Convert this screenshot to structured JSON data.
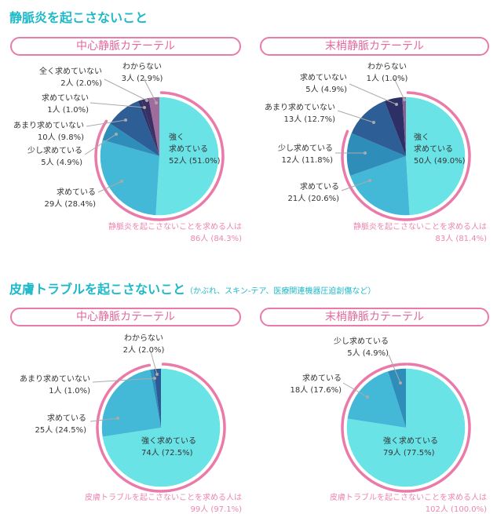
{
  "sections": [
    {
      "title": "静脈炎を起こさないこと",
      "subtitle": ""
    },
    {
      "title": "皮膚トラブルを起こさないこと",
      "subtitle": "（かぶれ、スキン-テア、医療関連機器圧迫創傷など）"
    }
  ],
  "colors": {
    "accent_title": "#1db9c9",
    "accent_pink": "#e97aa9"
  },
  "chart_data": [
    {
      "type": "pie",
      "title": "中心静脈カテーテル",
      "unit": "人",
      "slices": [
        {
          "label": "強く求めている",
          "count": 52,
          "percent": 51.0,
          "text": "52人 (51.0%)",
          "color": "#6ae3e7"
        },
        {
          "label": "求めている",
          "count": 29,
          "percent": 28.4,
          "text": "29人 (28.4%)",
          "color": "#43b8d7"
        },
        {
          "label": "少し求めている",
          "count": 5,
          "percent": 4.9,
          "text": "5人 (4.9%)",
          "color": "#2f8db9"
        },
        {
          "label": "あまり求めていない",
          "count": 10,
          "percent": 9.8,
          "text": "10人 (9.8%)",
          "color": "#2e5e96"
        },
        {
          "label": "求めていない",
          "count": 1,
          "percent": 1.0,
          "text": "1人 (1.0%)",
          "color": "#2b3467"
        },
        {
          "label": "全く求めていない",
          "count": 2,
          "percent": 2.0,
          "text": "2人 (2.0%)",
          "color": "#3b2f66"
        },
        {
          "label": "わからない",
          "count": 3,
          "percent": 2.9,
          "text": "3人 (2.9%)",
          "color": "#a06c9c"
        }
      ],
      "strong_label_lines": [
        "強く",
        "求めている"
      ],
      "highlight_percent": 84.3,
      "footnote": [
        "静脈炎を起こさないことを求める人は",
        "86人 (84.3%)"
      ]
    },
    {
      "type": "pie",
      "title": "末梢静脈カテーテル",
      "unit": "人",
      "slices": [
        {
          "label": "強く求めている",
          "count": 50,
          "percent": 49.0,
          "text": "50人 (49.0%)",
          "color": "#6ae3e7"
        },
        {
          "label": "求めている",
          "count": 21,
          "percent": 20.6,
          "text": "21人 (20.6%)",
          "color": "#43b8d7"
        },
        {
          "label": "少し求めている",
          "count": 12,
          "percent": 11.8,
          "text": "12人 (11.8%)",
          "color": "#2f8db9"
        },
        {
          "label": "あまり求めていない",
          "count": 13,
          "percent": 12.7,
          "text": "13人 (12.7%)",
          "color": "#2e5e96"
        },
        {
          "label": "求めていない",
          "count": 5,
          "percent": 4.9,
          "text": "5人 (4.9%)",
          "color": "#2c3066"
        },
        {
          "label": "わからない",
          "count": 1,
          "percent": 1.0,
          "text": "1人 (1.0%)",
          "color": "#8e5d94"
        }
      ],
      "strong_label_lines": [
        "強く",
        "求めている"
      ],
      "highlight_percent": 81.4,
      "footnote": [
        "静脈炎を起こさないことを求める人は",
        "83人 (81.4%)"
      ]
    },
    {
      "type": "pie",
      "title": "中心静脈カテーテル",
      "unit": "人",
      "slices": [
        {
          "label": "強く求めている",
          "count": 74,
          "percent": 72.5,
          "text": "74人 (72.5%)",
          "color": "#6ae3e7"
        },
        {
          "label": "求めている",
          "count": 25,
          "percent": 24.5,
          "text": "25人 (24.5%)",
          "color": "#43b8d7"
        },
        {
          "label": "あまり求めていない",
          "count": 1,
          "percent": 1.0,
          "text": "1人 (1.0%)",
          "color": "#2f8db9"
        },
        {
          "label": "わからない",
          "count": 2,
          "percent": 2.0,
          "text": "2人 (2.0%)",
          "color": "#2d5a96"
        }
      ],
      "highlight_percent": 97.1,
      "footnote": [
        "皮膚トラブルを起こさないことを求める人は",
        "99人 (97.1%)"
      ]
    },
    {
      "type": "pie",
      "title": "末梢静脈カテーテル",
      "unit": "人",
      "slices": [
        {
          "label": "強く求めている",
          "count": 79,
          "percent": 77.5,
          "text": "79人 (77.5%)",
          "color": "#6ae3e7"
        },
        {
          "label": "求めている",
          "count": 18,
          "percent": 17.6,
          "text": "18人 (17.6%)",
          "color": "#43b8d7"
        },
        {
          "label": "少し求めている",
          "count": 5,
          "percent": 4.9,
          "text": "5人 (4.9%)",
          "color": "#2f8db9"
        }
      ],
      "highlight_percent": 100.0,
      "footnote": [
        "皮膚トラブルを起こさないことを求める人は",
        "102人 (100.0%)"
      ]
    }
  ]
}
